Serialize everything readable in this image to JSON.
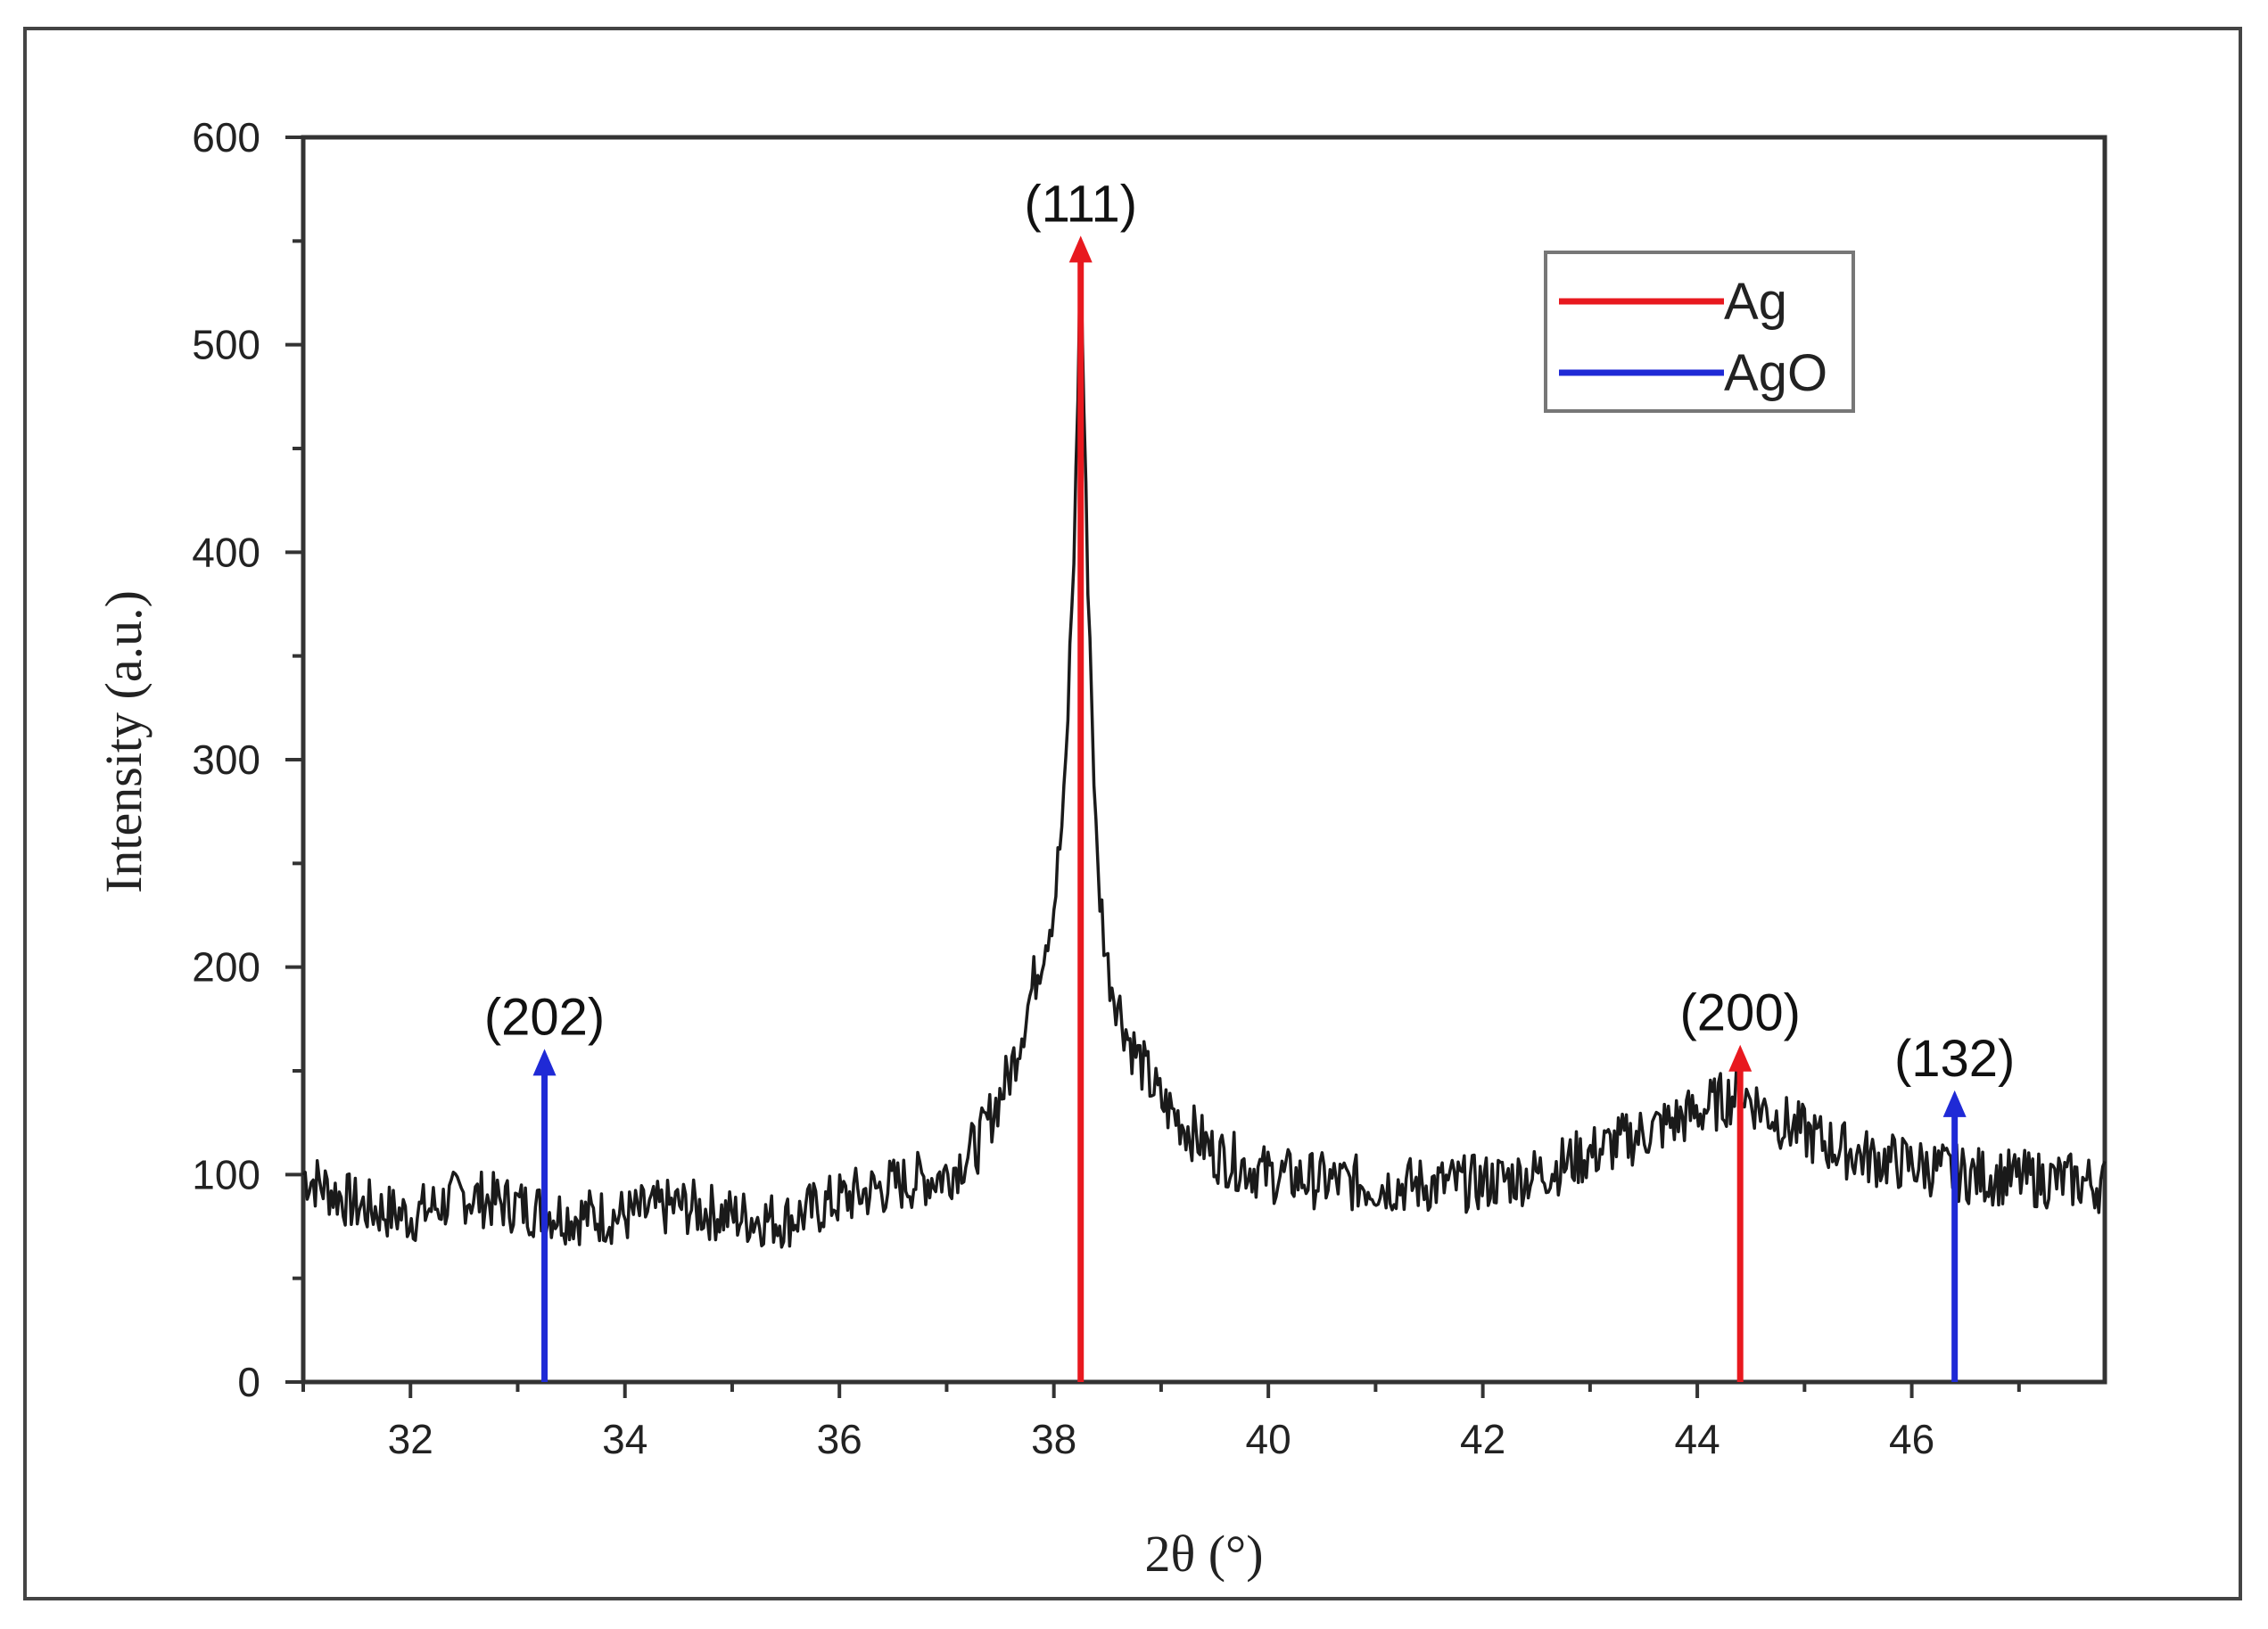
{
  "chart_data": {
    "type": "line",
    "title": "",
    "xlabel": "2θ (°)",
    "ylabel": "Intensity (a.u.)",
    "xlim": [
      31,
      47.8
    ],
    "ylim": [
      0,
      600
    ],
    "xticks": [
      32,
      34,
      36,
      38,
      40,
      42,
      44,
      46
    ],
    "yticks": [
      0,
      100,
      200,
      300,
      400,
      500,
      600
    ],
    "grid": false,
    "legend_position": "top-right",
    "colors": {
      "pattern": "#1a1a1a",
      "Ag": "#e8191f",
      "AgO": "#1f2ad6"
    },
    "pattern_profile": {
      "x": [
        31.0,
        31.5,
        32.0,
        32.5,
        33.0,
        33.5,
        34.0,
        34.5,
        35.0,
        35.5,
        36.0,
        36.5,
        37.0,
        37.3,
        37.6,
        37.8,
        38.0,
        38.1,
        38.2,
        38.25,
        38.3,
        38.4,
        38.5,
        38.7,
        39.0,
        39.5,
        40.0,
        40.5,
        41.0,
        41.5,
        42.0,
        42.5,
        43.0,
        43.5,
        44.0,
        44.4,
        44.8,
        45.2,
        45.6,
        46.0,
        46.5,
        47.0,
        47.5,
        47.8
      ],
      "y": [
        100,
        85,
        80,
        90,
        85,
        80,
        80,
        85,
        80,
        78,
        88,
        95,
        100,
        115,
        150,
        190,
        230,
        280,
        420,
        545,
        420,
        250,
        200,
        165,
        135,
        110,
        100,
        97,
        95,
        95,
        96,
        100,
        110,
        120,
        130,
        140,
        125,
        115,
        108,
        105,
        100,
        98,
        97,
        95
      ]
    },
    "series": [
      {
        "name": "Ag",
        "peaks": [
          {
            "x": 38.25,
            "y": 550,
            "label": "(111)"
          },
          {
            "x": 44.4,
            "y": 160,
            "label": "(200)"
          }
        ]
      },
      {
        "name": "AgO",
        "peaks": [
          {
            "x": 33.25,
            "y": 158,
            "label": "(202)"
          },
          {
            "x": 46.4,
            "y": 138,
            "label": "(132)"
          }
        ]
      }
    ]
  }
}
